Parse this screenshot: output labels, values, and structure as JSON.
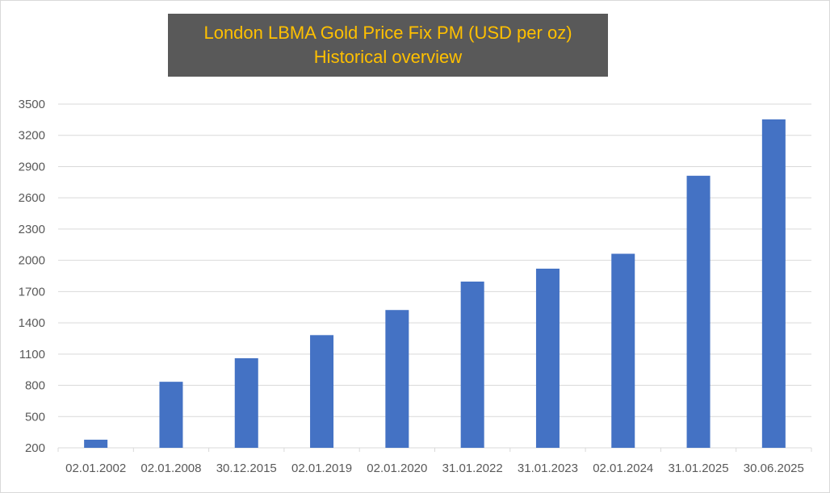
{
  "chart_data": {
    "type": "bar",
    "title": "London LBMA Gold Price Fix PM (USD per oz)",
    "subtitle": "Historical overview",
    "xlabel": "",
    "ylabel": "",
    "ylim": [
      200,
      3500
    ],
    "yticks": [
      200,
      500,
      800,
      1100,
      1400,
      1700,
      2000,
      2300,
      2600,
      2900,
      3200,
      3500
    ],
    "grid": true,
    "categories": [
      "02.01.2002",
      "02.01.2008",
      "30.12.2015",
      "02.01.2019",
      "02.01.2020",
      "31.01.2022",
      "31.01.2023",
      "02.01.2024",
      "31.01.2025",
      "30.06.2025"
    ],
    "values": [
      278,
      834,
      1060,
      1282,
      1523,
      1796,
      1920,
      2063,
      2812,
      3353
    ],
    "colors": {
      "bar": "#4472c4",
      "grid": "#d9d9d9",
      "title_bg": "#595959",
      "title_text": "#ffc000"
    }
  }
}
